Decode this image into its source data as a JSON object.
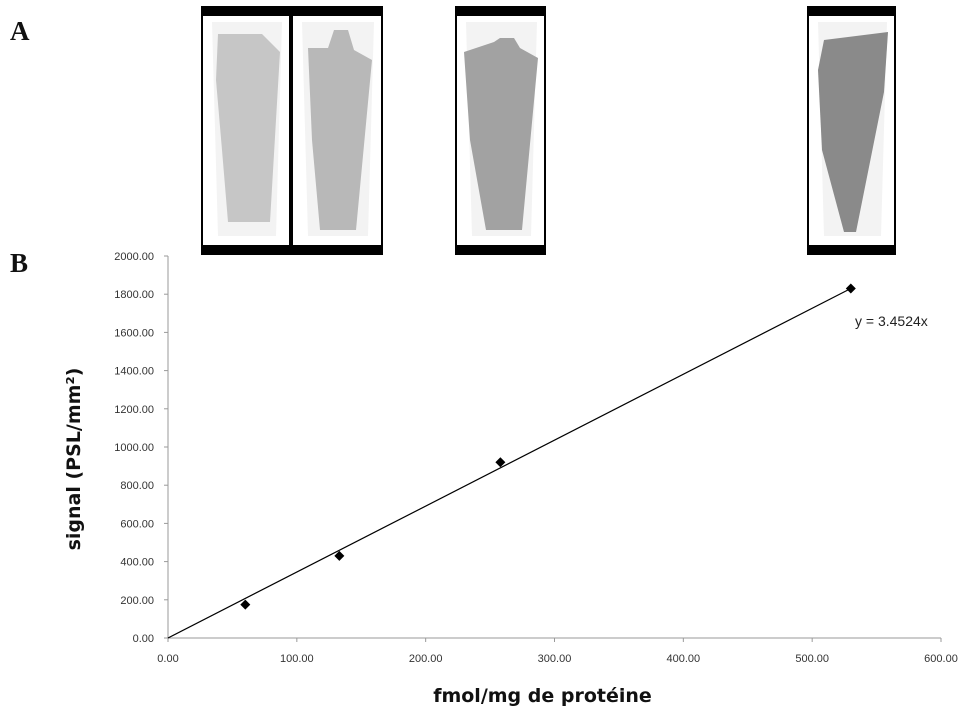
{
  "panels": {
    "a": "A",
    "b": "B"
  },
  "images": [
    {
      "tissue_gray": "#c6c6c6"
    },
    {
      "tissue_gray": "#b8b8b8"
    },
    {
      "tissue_gray": "#a2a2a2"
    },
    {
      "tissue_gray": "#8a8a8a"
    }
  ],
  "chart_data": {
    "type": "scatter",
    "title": "",
    "xlabel": "fmol/mg de protéine",
    "ylabel": "signal (PSL/mm²)",
    "xlim": [
      0,
      600
    ],
    "ylim": [
      0,
      2000
    ],
    "x_ticks": [
      "0.00",
      "100.00",
      "200.00",
      "300.00",
      "400.00",
      "500.00",
      "600.00"
    ],
    "y_ticks": [
      "0.00",
      "200.00",
      "400.00",
      "600.00",
      "800.00",
      "1000.00",
      "1200.00",
      "1400.00",
      "1600.00",
      "1800.00",
      "2000.00"
    ],
    "points": [
      {
        "x": 60,
        "y": 175
      },
      {
        "x": 133,
        "y": 430
      },
      {
        "x": 258,
        "y": 920
      },
      {
        "x": 530,
        "y": 1830
      }
    ],
    "trendline": {
      "slope": 3.4524,
      "intercept": 0,
      "label": "y = 3.4524x"
    },
    "grid": false,
    "marker_color": "#000000"
  }
}
